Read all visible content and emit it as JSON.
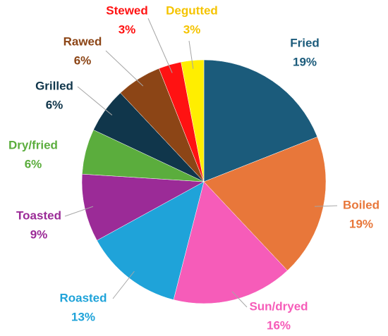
{
  "chart_data": {
    "type": "pie",
    "categories": [
      "Fried",
      "Boiled",
      "Sun/dryed",
      "Roasted",
      "Toasted",
      "Dry/fried",
      "Grilled",
      "Rawed",
      "Stewed",
      "Degutted"
    ],
    "values": [
      19,
      19,
      16,
      13,
      9,
      6,
      6,
      6,
      3,
      3
    ],
    "value_labels": [
      "19%",
      "19%",
      "16%",
      "13%",
      "9%",
      "6%",
      "6%",
      "6%",
      "3%",
      "3%"
    ],
    "colors": [
      "#1b5b7b",
      "#e8773a",
      "#f65cb9",
      "#1fa3d9",
      "#9b2b97",
      "#5bad3d",
      "#10364b",
      "#8c4516",
      "#ff1212",
      "#ffee00"
    ]
  }
}
